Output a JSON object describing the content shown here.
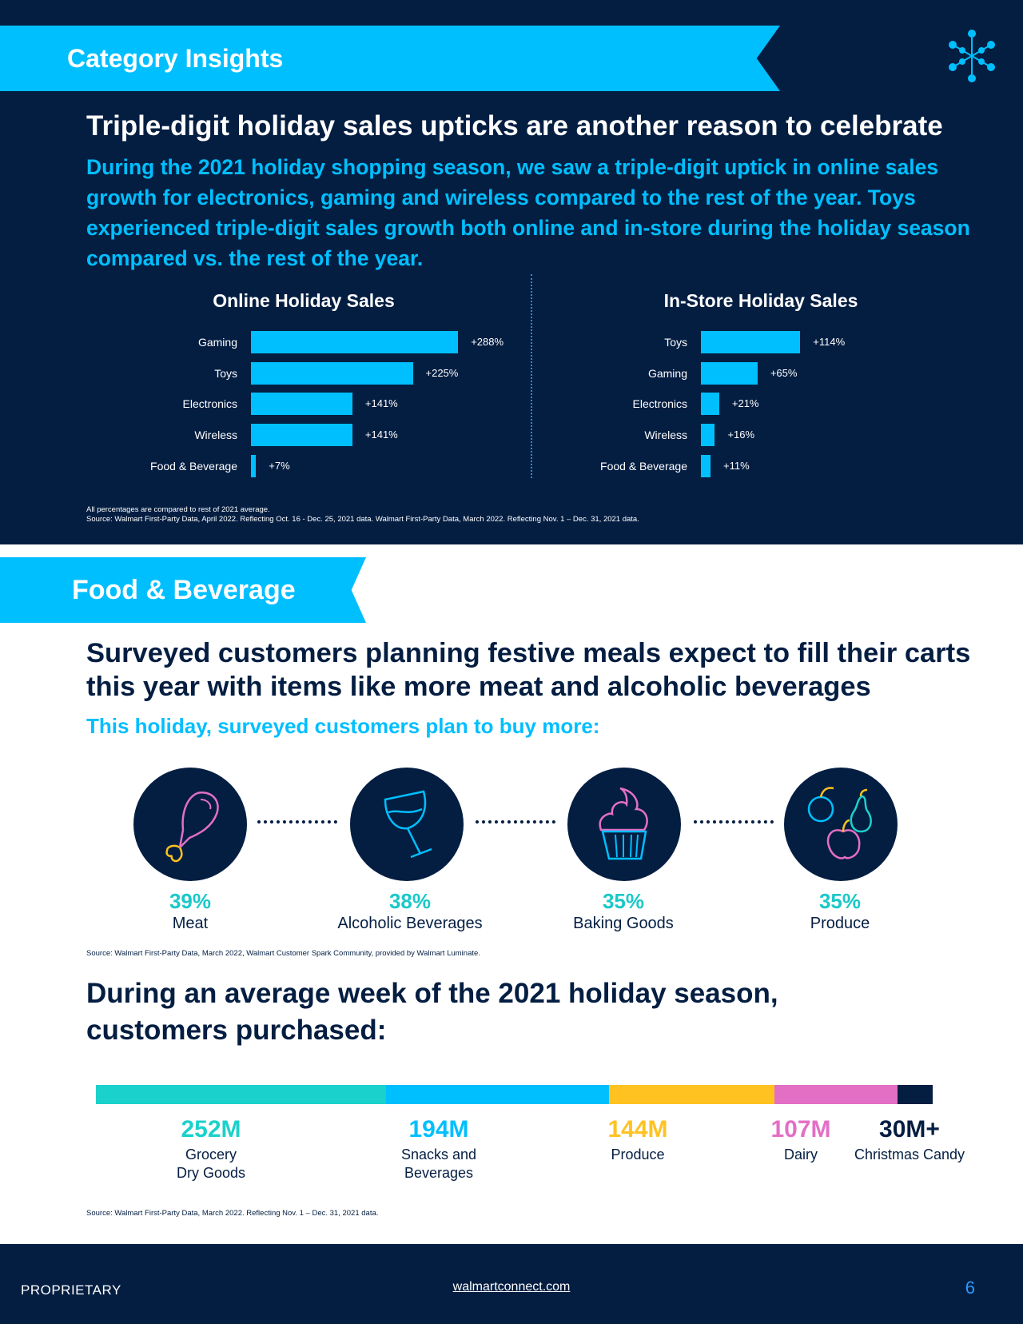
{
  "insights": {
    "ribbon": "Category Insights",
    "headline": "Triple-digit holiday sales upticks are another reason to celebrate",
    "lead": "During the 2021 holiday shopping season, we saw a triple-digit uptick in online sales growth for electronics, gaming and wireless compared to the rest of the year. Toys experienced triple-digit sales growth both online and in-store during the holiday season compared vs. the rest of the year.",
    "footnote_1": "All percentages are compared to rest of 2021 average.",
    "footnote_2": "Source: Walmart First-Party Data, April 2022. Reflecting Oct. 16 - Dec. 25, 2021 data. Walmart First-Party Data, March 2022. Reflecting Nov. 1 – Dec. 31, 2021 data."
  },
  "chart_data": [
    {
      "type": "bar",
      "orientation": "horizontal",
      "title": "Online Holiday Sales",
      "categories": [
        "Gaming",
        "Toys",
        "Electronics",
        "Wireless",
        "Food & Beverage"
      ],
      "values": [
        288,
        225,
        141,
        141,
        7
      ],
      "labels": [
        "+288%",
        "+225%",
        "+141%",
        "+141%",
        "+7%"
      ],
      "unit": "%"
    },
    {
      "type": "bar",
      "orientation": "horizontal",
      "title": "In-Store Holiday Sales",
      "categories": [
        "Toys",
        "Gaming",
        "Electronics",
        "Wireless",
        "Food & Beverage"
      ],
      "values": [
        114,
        65,
        21,
        16,
        11
      ],
      "labels": [
        "+114%",
        "+65%",
        "+21%",
        "+16%",
        "+11%"
      ],
      "unit": "%"
    }
  ],
  "food": {
    "ribbon": "Food & Beverage",
    "headline": "Surveyed customers planning festive meals expect to fill their carts this year with items like more meat and alcoholic beverages",
    "subheading": "This holiday, surveyed customers plan to buy more:",
    "items": [
      {
        "pct": "39%",
        "label": "Meat",
        "icon": "drumstick-icon"
      },
      {
        "pct": "38%",
        "label": "Alcoholic Beverages",
        "icon": "wine-glass-icon"
      },
      {
        "pct": "35%",
        "label": "Baking Goods",
        "icon": "cupcake-icon"
      },
      {
        "pct": "35%",
        "label": "Produce",
        "icon": "fruit-icon"
      }
    ],
    "source": "Source: Walmart First-Party Data, March 2022, Walmart Customer Spark Community, provided by Walmart Luminate."
  },
  "weekly": {
    "headline": "During an average week of the 2021 holiday season, customers purchased:",
    "items": [
      {
        "value": "252M",
        "amount": 252,
        "label_1": "Grocery",
        "label_2": "Dry Goods",
        "color": "#1bd1cb"
      },
      {
        "value": "194M",
        "amount": 194,
        "label_1": "Snacks and",
        "label_2": "Beverages",
        "color": "#00bfff"
      },
      {
        "value": "144M",
        "amount": 144,
        "label_1": "Produce",
        "label_2": "",
        "color": "#ffc220"
      },
      {
        "value": "107M",
        "amount": 107,
        "label_1": "Dairy",
        "label_2": "",
        "color": "#e36fc5"
      },
      {
        "value": "30M+",
        "amount": 30,
        "label_1": "Christmas Candy",
        "label_2": "",
        "color": "#041e42"
      }
    ],
    "source": "Source: Walmart First-Party Data, March 2022. Reflecting Nov. 1 – Dec. 31, 2021 data."
  },
  "footer": {
    "left": "PROPRIETARY",
    "link": "walmartconnect.com",
    "page": "6"
  }
}
